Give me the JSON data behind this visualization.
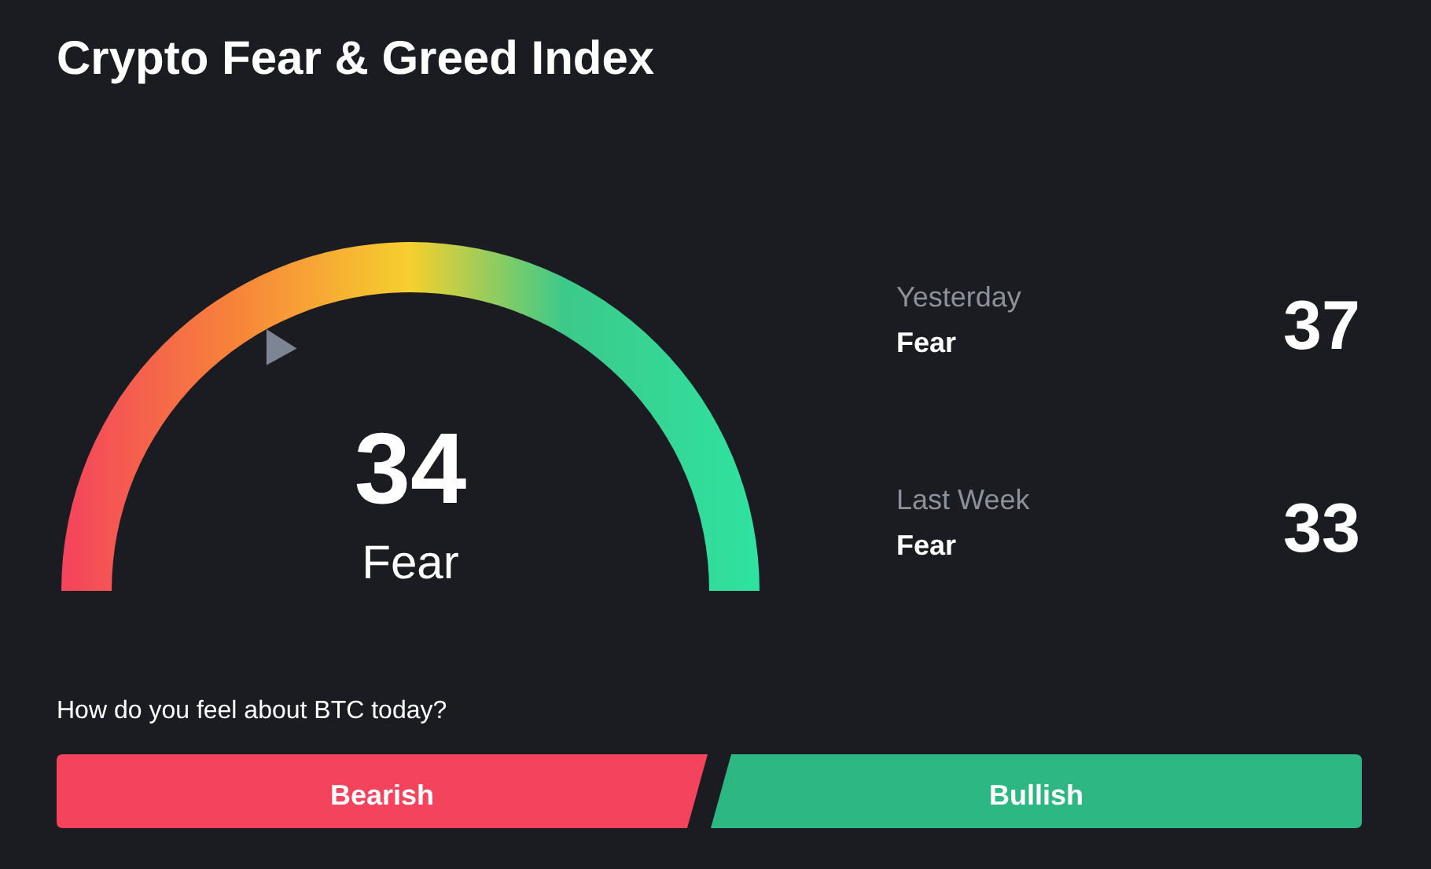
{
  "chart_data": {
    "type": "other",
    "title": "Crypto Fear & Greed Index",
    "categories": [
      null,
      "Yesterday",
      "Last Week"
    ],
    "values": [
      34,
      37,
      33
    ],
    "data_labels": true,
    "annotations": [
      "Fear",
      "Fear",
      "Fear",
      "How do you feel about BTC today?",
      "Bearish",
      "Bullish"
    ]
  }
}
